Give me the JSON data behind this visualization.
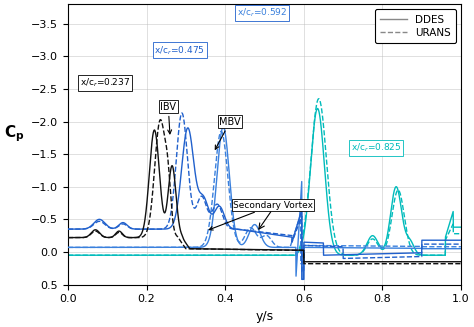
{
  "title": "",
  "xlabel": "y/s",
  "ylabel": "C_p",
  "xlim": [
    0,
    1.0
  ],
  "ylim": [
    0.5,
    -3.8
  ],
  "xticks": [
    0,
    0.2,
    0.4,
    0.6,
    0.8,
    1.0
  ],
  "yticks": [
    -3.5,
    -3.0,
    -2.5,
    -2.0,
    -1.5,
    -1.0,
    -0.5,
    0.0,
    0.5
  ],
  "c237": "#111111",
  "c475": "#2060cc",
  "c592": "#2060cc",
  "c825": "#00bbbb",
  "legend_labels": [
    "DDES",
    "URANS"
  ],
  "background_color": "#ffffff",
  "ann_237": "x/c$_r$=0.237",
  "ann_475": "x/c$_r$=0.475",
  "ann_592": "x/c$_r$=0.592",
  "ann_825": "x/c$_r$=0.825",
  "ann_ibv": "IBV",
  "ann_mbv": "MBV",
  "ann_sv": "Secondary Vortex"
}
